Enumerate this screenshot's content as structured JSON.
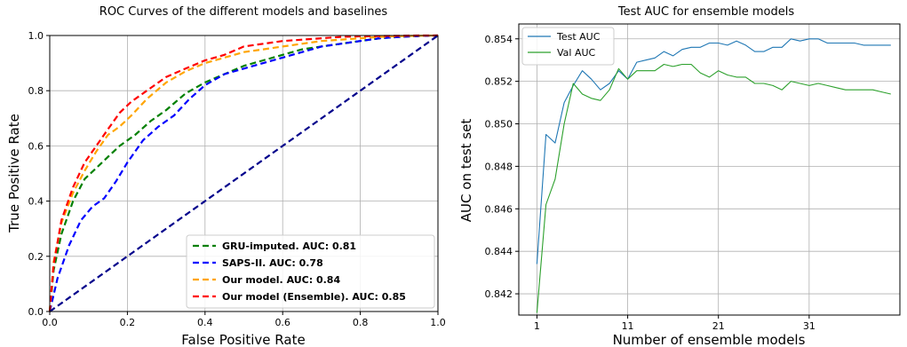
{
  "chart_data": [
    {
      "type": "line",
      "title": "ROC Curves of the different models and baselines",
      "xlabel": "False Positive Rate",
      "ylabel": "True Positive Rate",
      "xlim": [
        0,
        1
      ],
      "ylim": [
        0,
        1
      ],
      "xticks": [
        "0.0",
        "0.2",
        "0.4",
        "0.6",
        "0.8",
        "1.0"
      ],
      "yticks": [
        "0.0",
        "0.2",
        "0.4",
        "0.6",
        "0.8",
        "1.0"
      ],
      "grid": true,
      "legend_position": "lower-right",
      "series": [
        {
          "name": "GRU-imputed. AUC: 0.81",
          "color": "#008000",
          "style": "dashed",
          "x": [
            0,
            0.01,
            0.03,
            0.06,
            0.09,
            0.12,
            0.15,
            0.18,
            0.22,
            0.26,
            0.3,
            0.35,
            0.4,
            0.45,
            0.5,
            0.55,
            0.6,
            0.65,
            0.7,
            0.75,
            0.8,
            0.85,
            0.9,
            0.95,
            1.0
          ],
          "y": [
            0,
            0.15,
            0.28,
            0.4,
            0.48,
            0.52,
            0.56,
            0.6,
            0.64,
            0.69,
            0.73,
            0.79,
            0.83,
            0.86,
            0.89,
            0.91,
            0.93,
            0.95,
            0.96,
            0.97,
            0.98,
            0.99,
            0.995,
            0.998,
            1.0
          ]
        },
        {
          "name": "SAPS-II. AUC: 0.78",
          "color": "#0000ff",
          "style": "dashed",
          "x": [
            0,
            0.02,
            0.05,
            0.08,
            0.11,
            0.14,
            0.17,
            0.2,
            0.24,
            0.28,
            0.32,
            0.36,
            0.4,
            0.45,
            0.5,
            0.55,
            0.6,
            0.65,
            0.7,
            0.75,
            0.8,
            0.85,
            0.9,
            0.95,
            1.0
          ],
          "y": [
            0,
            0.12,
            0.24,
            0.33,
            0.38,
            0.41,
            0.47,
            0.54,
            0.62,
            0.67,
            0.71,
            0.77,
            0.82,
            0.86,
            0.88,
            0.9,
            0.92,
            0.94,
            0.96,
            0.97,
            0.98,
            0.99,
            0.995,
            0.998,
            1.0
          ]
        },
        {
          "name": "Our model. AUC: 0.84",
          "color": "#ffa500",
          "style": "dashed",
          "x": [
            0,
            0.01,
            0.03,
            0.06,
            0.09,
            0.12,
            0.15,
            0.18,
            0.21,
            0.25,
            0.3,
            0.35,
            0.4,
            0.45,
            0.5,
            0.55,
            0.6,
            0.65,
            0.7,
            0.75,
            0.8,
            0.85,
            0.9,
            0.95,
            1.0
          ],
          "y": [
            0,
            0.18,
            0.32,
            0.43,
            0.51,
            0.58,
            0.64,
            0.67,
            0.71,
            0.77,
            0.83,
            0.87,
            0.9,
            0.92,
            0.94,
            0.95,
            0.96,
            0.97,
            0.98,
            0.985,
            0.99,
            0.995,
            0.998,
            0.999,
            1.0
          ]
        },
        {
          "name": "Our model (Ensemble). AUC: 0.85",
          "color": "#ff0000",
          "style": "dashed",
          "x": [
            0,
            0.01,
            0.03,
            0.06,
            0.09,
            0.12,
            0.15,
            0.18,
            0.21,
            0.25,
            0.3,
            0.35,
            0.4,
            0.45,
            0.5,
            0.55,
            0.6,
            0.65,
            0.7,
            0.75,
            0.8,
            0.85,
            0.9,
            0.95,
            1.0
          ],
          "y": [
            0,
            0.17,
            0.33,
            0.45,
            0.54,
            0.6,
            0.66,
            0.72,
            0.76,
            0.8,
            0.85,
            0.88,
            0.91,
            0.93,
            0.96,
            0.97,
            0.98,
            0.985,
            0.99,
            0.995,
            0.997,
            0.998,
            0.999,
            1.0,
            1.0
          ]
        },
        {
          "name": "",
          "color": "#00008b",
          "style": "dashed",
          "x": [
            0,
            1
          ],
          "y": [
            0,
            1
          ]
        }
      ]
    },
    {
      "type": "line",
      "title": "Test AUC for ensemble models",
      "xlabel": "Number of ensemble models",
      "ylabel": "AUC on test set",
      "xlim": [
        -1,
        41
      ],
      "ylim": [
        0.841,
        0.8547
      ],
      "xticks": [
        "1",
        "11",
        "21",
        "31"
      ],
      "yticks": [
        "0.842",
        "0.844",
        "0.846",
        "0.848",
        "0.850",
        "0.852",
        "0.854"
      ],
      "grid": true,
      "legend_position": "upper-left",
      "series": [
        {
          "name": "Test AUC",
          "color": "#1f77b4",
          "style": "solid",
          "x": [
            1,
            2,
            3,
            4,
            5,
            6,
            7,
            8,
            9,
            10,
            11,
            12,
            13,
            14,
            15,
            16,
            17,
            18,
            19,
            20,
            21,
            22,
            23,
            24,
            25,
            26,
            27,
            28,
            29,
            30,
            31,
            32,
            33,
            34,
            35,
            36,
            37,
            38,
            39,
            40
          ],
          "y": [
            0.8434,
            0.8495,
            0.8491,
            0.851,
            0.8518,
            0.8525,
            0.8521,
            0.8516,
            0.8519,
            0.8525,
            0.8521,
            0.8529,
            0.853,
            0.8531,
            0.8534,
            0.8532,
            0.8535,
            0.8536,
            0.8536,
            0.8538,
            0.8538,
            0.8537,
            0.8539,
            0.8537,
            0.8534,
            0.8534,
            0.8536,
            0.8536,
            0.854,
            0.8539,
            0.854,
            0.854,
            0.8538,
            0.8538,
            0.8538,
            0.8538,
            0.8537,
            0.8537,
            0.8537,
            0.8537
          ]
        },
        {
          "name": "Val AUC",
          "color": "#2ca02c",
          "style": "solid",
          "x": [
            1,
            2,
            3,
            4,
            5,
            6,
            7,
            8,
            9,
            10,
            11,
            12,
            13,
            14,
            15,
            16,
            17,
            18,
            19,
            20,
            21,
            22,
            23,
            24,
            25,
            26,
            27,
            28,
            29,
            30,
            31,
            32,
            33,
            34,
            35,
            36,
            37,
            38,
            39,
            40
          ],
          "y": [
            0.8411,
            0.8462,
            0.8474,
            0.85,
            0.8519,
            0.8514,
            0.8512,
            0.8511,
            0.8516,
            0.8526,
            0.8521,
            0.8525,
            0.8525,
            0.8525,
            0.8528,
            0.8527,
            0.8528,
            0.8528,
            0.8524,
            0.8522,
            0.8525,
            0.8523,
            0.8522,
            0.8522,
            0.8519,
            0.8519,
            0.8518,
            0.8516,
            0.852,
            0.8519,
            0.8518,
            0.8519,
            0.8518,
            0.8517,
            0.8516,
            0.8516,
            0.8516,
            0.8516,
            0.8515,
            0.8514
          ]
        }
      ]
    }
  ]
}
